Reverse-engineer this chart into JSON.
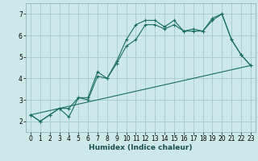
{
  "title": "",
  "xlabel": "Humidex (Indice chaleur)",
  "ylabel": "",
  "background_color": "#cce8e8",
  "grid_color": "#aacece",
  "line_color": "#1a6e5e",
  "xlim": [
    -0.5,
    23.5
  ],
  "ylim": [
    1.5,
    7.5
  ],
  "xticks": [
    0,
    1,
    2,
    3,
    4,
    5,
    6,
    7,
    8,
    9,
    10,
    11,
    12,
    13,
    14,
    15,
    16,
    17,
    18,
    19,
    20,
    21,
    22,
    23
  ],
  "yticks": [
    2,
    3,
    4,
    5,
    6,
    7
  ],
  "series1_x": [
    0,
    1,
    2,
    3,
    4,
    5,
    6,
    7,
    8,
    9,
    10,
    11,
    12,
    13,
    14,
    15,
    16,
    17,
    18,
    19,
    20,
    21,
    22,
    23
  ],
  "series1_y": [
    2.3,
    2.0,
    2.3,
    2.6,
    2.6,
    3.1,
    3.1,
    4.3,
    4.0,
    4.8,
    5.8,
    6.5,
    6.7,
    6.7,
    6.4,
    6.7,
    6.2,
    6.3,
    6.2,
    6.8,
    7.0,
    5.8,
    5.1,
    4.6
  ],
  "series2_x": [
    0,
    1,
    2,
    3,
    4,
    5,
    6,
    7,
    8,
    9,
    10,
    11,
    12,
    13,
    14,
    15,
    16,
    17,
    18,
    19,
    20,
    21,
    22,
    23
  ],
  "series2_y": [
    2.3,
    2.0,
    2.3,
    2.6,
    2.2,
    3.1,
    3.0,
    4.1,
    4.0,
    4.7,
    5.5,
    5.8,
    6.5,
    6.5,
    6.3,
    6.5,
    6.2,
    6.2,
    6.2,
    6.7,
    7.0,
    5.8,
    5.1,
    4.6
  ],
  "series3_x": [
    0,
    23
  ],
  "series3_y": [
    2.3,
    4.6
  ],
  "tick_fontsize": 5.5,
  "xlabel_fontsize": 6.5
}
